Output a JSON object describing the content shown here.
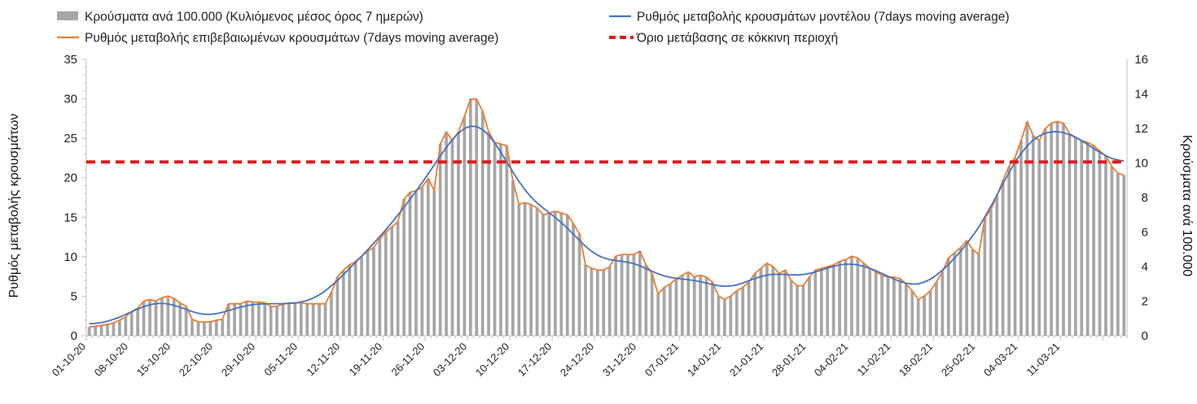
{
  "chart_data": {
    "type": "bar",
    "title": "",
    "legend": [
      {
        "label": "Κρούσματα ανά 100.000 (Κυλιόμενος μέσος όρος 7 ημερών)",
        "color": "#a6a6a6",
        "kind": "bar"
      },
      {
        "label": "Ρυθμός μεταβολής κρουσμάτων μοντέλου (7days moving average)",
        "color": "#4472c4",
        "kind": "line"
      },
      {
        "label": "Ρυθμός μεταβολής επιβεβαιωμένων κρουσμάτων (7days moving average)",
        "color": "#ed7d31",
        "kind": "line"
      },
      {
        "label": "Όριο μετάβασης σε κόκκινη περιοχή",
        "color": "#e31a1c",
        "kind": "dashed"
      }
    ],
    "legend_position": "top",
    "ylabel_left": "Ρυθμός μεταβολής κρουσμάτων",
    "ylabel_right": "Κρούσματα ανά 100.000",
    "ylim_left": [
      0,
      35
    ],
    "ylim_right": [
      0,
      16
    ],
    "yticks_left": [
      0,
      5,
      10,
      15,
      20,
      25,
      30,
      35
    ],
    "yticks_right": [
      0,
      2,
      4,
      6,
      8,
      10,
      12,
      14,
      16
    ],
    "x_tick_labels": [
      "01-10-20",
      "08-10-20",
      "15-10-20",
      "22-10-20",
      "29-10-20",
      "05-11-20",
      "12-11-20",
      "19-11-20",
      "26-11-20",
      "03-12-20",
      "10-12-20",
      "17-12-20",
      "24-12-20",
      "31-12-20",
      "07-01-21",
      "14-01-21",
      "21-01-21",
      "28-01-21",
      "04-02-21",
      "11-02-21",
      "18-02-21",
      "25-02-21",
      "04-03-21",
      "11-03-21"
    ],
    "x_tick_interval_days": 7,
    "threshold": 22,
    "bars_right_axis": [
      0.5,
      0.55,
      0.6,
      0.65,
      0.75,
      0.9,
      1.1,
      1.4,
      1.6,
      2.0,
      2.1,
      2.0,
      2.2,
      2.3,
      2.15,
      1.9,
      1.7,
      0.95,
      0.8,
      0.8,
      0.8,
      0.9,
      0.95,
      1.85,
      1.85,
      1.85,
      2.0,
      1.95,
      1.95,
      1.9,
      1.7,
      1.7,
      1.85,
      1.9,
      1.9,
      1.9,
      1.85,
      1.85,
      1.85,
      1.85,
      2.5,
      3.4,
      3.8,
      4.1,
      4.3,
      4.6,
      4.9,
      5.1,
      5.6,
      6.0,
      6.3,
      6.6,
      7.9,
      8.3,
      8.4,
      8.6,
      9.1,
      8.4,
      11.1,
      11.8,
      11.3,
      11.8,
      12.7,
      13.7,
      13.7,
      13.0,
      11.8,
      11.2,
      11.1,
      11.0,
      9.0,
      7.6,
      7.7,
      7.6,
      7.4,
      7.0,
      7.1,
      7.2,
      7.1,
      7.0,
      6.5,
      5.9,
      4.1,
      3.9,
      3.8,
      3.8,
      4.0,
      4.6,
      4.7,
      4.7,
      4.7,
      4.9,
      4.1,
      3.6,
      2.4,
      2.8,
      3.0,
      3.3,
      3.5,
      3.7,
      3.4,
      3.5,
      3.4,
      3.1,
      2.3,
      2.1,
      2.3,
      2.6,
      2.8,
      3.1,
      3.6,
      3.9,
      4.2,
      4.0,
      3.6,
      3.8,
      3.2,
      2.9,
      2.9,
      3.4,
      3.8,
      3.9,
      4.0,
      4.1,
      4.3,
      4.4,
      4.6,
      4.5,
      4.2,
      3.9,
      3.7,
      3.5,
      3.4,
      3.4,
      3.3,
      3.0,
      2.6,
      2.1,
      2.3,
      2.6,
      3.1,
      3.7,
      4.5,
      4.8,
      5.1,
      5.5,
      5.0,
      4.7,
      6.8,
      7.3,
      8.1,
      9.0,
      9.8,
      10.3,
      11.3,
      12.4,
      11.6,
      11.3,
      12.0,
      12.3,
      12.4,
      12.3,
      11.7,
      11.5,
      11.3,
      11.2,
      11.0,
      10.7,
      10.4,
      9.8,
      9.4,
      9.3
    ]
  }
}
